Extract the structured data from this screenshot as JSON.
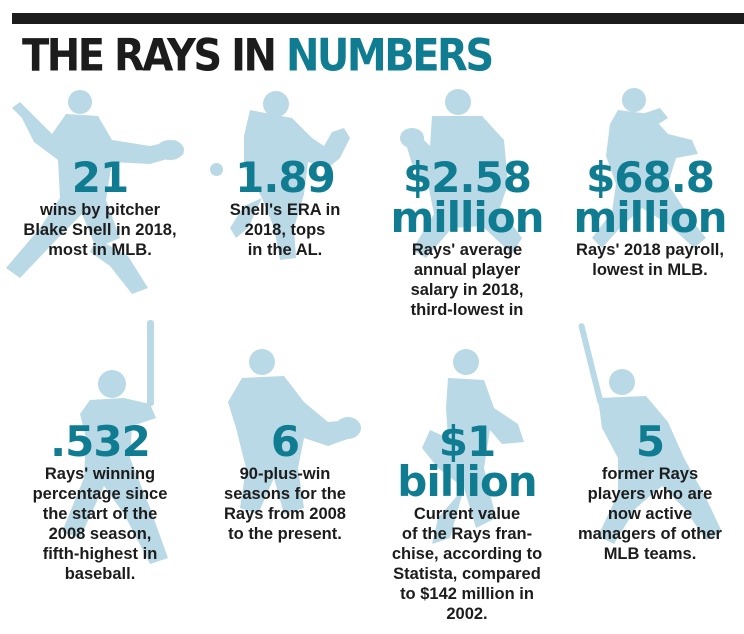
{
  "title": {
    "part1": "THE RAYS IN",
    "part2": "NUMBERS"
  },
  "colors": {
    "teal": "#107c91",
    "dark": "#1c1c1c",
    "silhouette": "#b9d9e6"
  },
  "stats": [
    {
      "value": "21",
      "desc": "wins by pitcher\nBlake Snell in 2018,\nmost in MLB.",
      "icon": "pitcher-silhouette-icon"
    },
    {
      "value": "1.89",
      "desc": "Snell's ERA in\n2018, tops\nin the AL.",
      "icon": "pitcher-windup-silhouette-icon"
    },
    {
      "value": "$2.58\nmillion",
      "desc": "Rays' average\nannual player\nsalary in 2018,\nthird-lowest in",
      "icon": "catcher-silhouette-icon"
    },
    {
      "value": "$68.8\nmillion",
      "desc": "Rays' 2018 payroll,\nlowest in MLB.",
      "icon": "fielder-silhouette-icon"
    },
    {
      "value": ".532",
      "desc": "Rays' winning\npercentage since\nthe start of the\n2008 season,\nfifth-highest in\nbaseball.",
      "icon": "batter-silhouette-icon"
    },
    {
      "value": "6",
      "desc": "90-plus-win\nseasons for the\nRays from 2008\nto the present.",
      "icon": "infielder-silhouette-icon"
    },
    {
      "value": "$1\nbillion",
      "desc": "Current value\nof the Rays fran-\nchise, according to\nStatista, compared\nto $142 million in\n2002.",
      "icon": "pitcher-leg-kick-silhouette-icon"
    },
    {
      "value": "5",
      "desc": "former Rays\nplayers who are\nnow active\nmanagers of other\nMLB teams.",
      "icon": "batter-stance-silhouette-icon"
    }
  ]
}
